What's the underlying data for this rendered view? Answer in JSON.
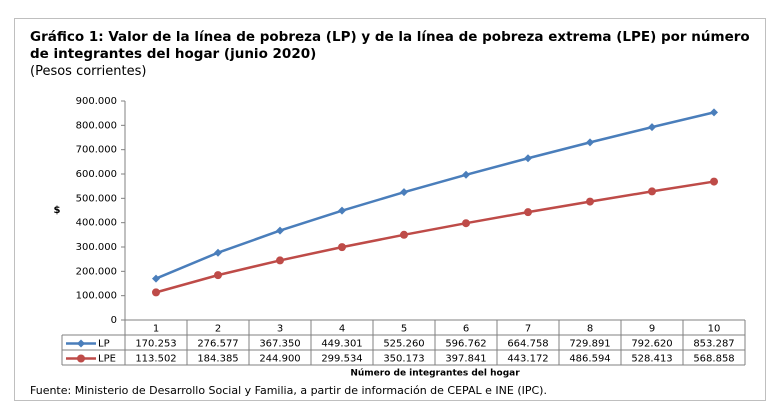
{
  "chart_data": {
    "type": "line",
    "title": "Gráfico 1: Valor de la línea de pobreza (LP) y de la línea de pobreza extrema (LPE) por número de integrantes del hogar (junio 2020)",
    "subtitle": "(Pesos corrientes)",
    "y_label": "$",
    "x_label": "Número de integrantes del hogar",
    "source": "Fuente: Ministerio de Desarrollo Social y Familia, a partir de información de CEPAL e INE (IPC).",
    "categories": [
      "1",
      "2",
      "3",
      "4",
      "5",
      "6",
      "7",
      "8",
      "9",
      "10"
    ],
    "series": [
      {
        "name": "LP",
        "color": "#4a7ebb",
        "marker": "diamond",
        "values": [
          170253,
          276577,
          367350,
          449301,
          525260,
          596762,
          664758,
          729891,
          792620,
          853287
        ],
        "value_labels": [
          "170.253",
          "276.577",
          "367.350",
          "449.301",
          "525.260",
          "596.762",
          "664.758",
          "729.891",
          "792.620",
          "853.287"
        ]
      },
      {
        "name": "LPE",
        "color": "#be4b48",
        "marker": "circle",
        "values": [
          113502,
          184385,
          244900,
          299534,
          350173,
          397841,
          443172,
          486594,
          528413,
          568858
        ],
        "value_labels": [
          "113.502",
          "184.385",
          "244.900",
          "299.534",
          "350.173",
          "397.841",
          "443.172",
          "486.594",
          "528.413",
          "568.858"
        ]
      }
    ],
    "ylim": [
      0,
      900000
    ],
    "yticks": [
      0,
      {
        "value": 100000,
        "label": "100.000"
      },
      {
        "value": 200000,
        "label": "200.000"
      },
      {
        "value": 300000,
        "label": "300.000"
      },
      {
        "value": 400000,
        "label": "400.000"
      },
      {
        "value": 500000,
        "label": "500.000"
      },
      {
        "value": 600000,
        "label": "600.000"
      },
      {
        "value": 700000,
        "label": "700.000"
      },
      {
        "value": 800000,
        "label": "800.000"
      },
      {
        "value": 900000,
        "label": "900.000"
      }
    ],
    "grid": false
  }
}
